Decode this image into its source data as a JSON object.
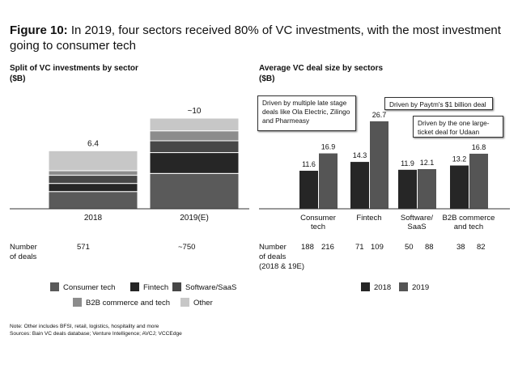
{
  "figure": {
    "label": "Figure 10:",
    "title": "In 2019, four sectors received 80% of VC investments, with the most investment going to consumer tech"
  },
  "left_panel": {
    "title": "Split of VC investments by sector",
    "unit": "($B)",
    "deals_label_line1": "Number",
    "deals_label_line2": "of deals",
    "deals": [
      "571",
      "~750"
    ]
  },
  "right_panel": {
    "title": "Average VC deal size by sectors",
    "unit": "($B)",
    "deals_label_line1": "Number",
    "deals_label_line2": "of deals",
    "deals_label_line3": "(2018 & 19E)",
    "deals": [
      [
        "188",
        "216"
      ],
      [
        "71",
        "109"
      ],
      [
        "50",
        "88"
      ],
      [
        "38",
        "82"
      ]
    ],
    "callouts": {
      "consumer": "Driven by multiple late stage deals like Ola Electric, Zilingo and Pharmeasy",
      "fintech": "Driven by Paytm's $1 billion deal",
      "b2b": "Driven by the one large-ticket deal for Udaan"
    }
  },
  "legend_left": [
    "Consumer tech",
    "Fintech",
    "Software/SaaS",
    "B2B commerce and tech",
    "Other"
  ],
  "legend_right": [
    "2018",
    "2019"
  ],
  "notes": {
    "line1": "Note: Other includes BFSI, retail, logistics, hospitality and more",
    "line2": "Sources: Bain VC deals database; Venture Intelligence; AVCJ; VCCEdge"
  },
  "colors": {
    "consumer_tech": "#5a5a5a",
    "fintech": "#262626",
    "software_saas": "#474747",
    "b2b": "#8c8c8c",
    "other": "#c7c7c7",
    "y2018": "#262626",
    "y2019": "#555555"
  },
  "chart_data": [
    {
      "type": "bar",
      "stacked": true,
      "title": "Split of VC investments by sector",
      "ylabel": "($B)",
      "categories": [
        "2018",
        "2019(E)"
      ],
      "totals": [
        "6.4",
        "~10"
      ],
      "series": [
        {
          "name": "Consumer tech",
          "values": [
            1.9,
            3.9
          ]
        },
        {
          "name": "Fintech",
          "values": [
            0.9,
            2.3
          ]
        },
        {
          "name": "Software/SaaS",
          "values": [
            0.9,
            1.3
          ]
        },
        {
          "name": "B2B commerce and tech",
          "values": [
            0.5,
            1.1
          ]
        },
        {
          "name": "Other",
          "values": [
            2.2,
            1.4
          ]
        }
      ]
    },
    {
      "type": "bar",
      "title": "Average VC deal size by sectors",
      "ylabel": "($B)",
      "categories": [
        "Consumer tech",
        "Fintech",
        "Software/ SaaS",
        "B2B commerce and tech"
      ],
      "series": [
        {
          "name": "2018",
          "values": [
            11.6,
            14.3,
            11.9,
            13.2
          ]
        },
        {
          "name": "2019",
          "values": [
            16.9,
            26.7,
            12.1,
            16.8
          ]
        }
      ],
      "ylim": [
        0,
        30
      ]
    }
  ]
}
